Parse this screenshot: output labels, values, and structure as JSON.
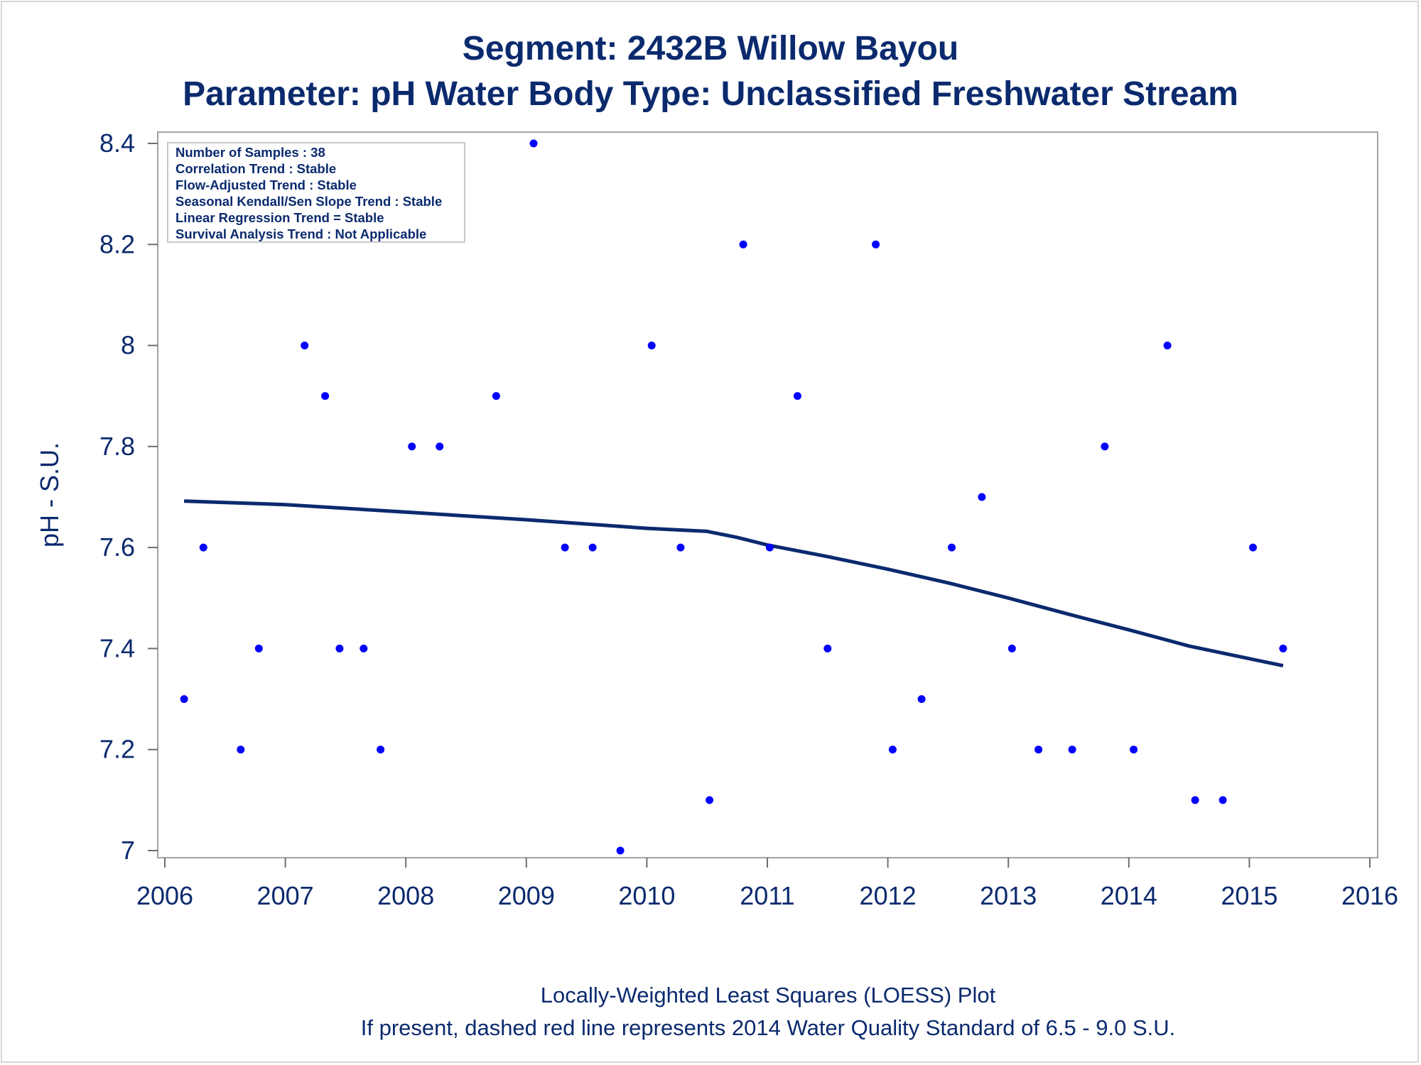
{
  "chart_data": {
    "type": "scatter",
    "title": "Segment: 2432B  Willow Bayou",
    "subtitle": "Parameter: pH   Water Body Type: Unclassified Freshwater Stream",
    "xlabel": "",
    "ylabel": "pH - S.U.",
    "xlim": [
      2006,
      2016
    ],
    "ylim": [
      7.0,
      8.4
    ],
    "x_ticks": [
      2006,
      2007,
      2008,
      2009,
      2010,
      2011,
      2012,
      2013,
      2014,
      2015,
      2016
    ],
    "y_ticks": [
      7,
      7.2,
      7.4,
      7.6,
      7.8,
      8,
      8.2,
      8.4
    ],
    "y_tick_labels": [
      "7",
      "7.2",
      "7.4",
      "7.6",
      "7.8",
      "8",
      "8.2",
      "8.4"
    ],
    "grid": false,
    "legend_position": "top-left",
    "legend_lines": [
      "Number of Samples : 38",
      "Correlation Trend : Stable",
      "Flow-Adjusted Trend : Stable",
      "Seasonal Kendall/Sen Slope Trend : Stable",
      "Linear Regression Trend = Stable",
      "Survival Analysis Trend : Not Applicable"
    ],
    "footnotes": [
      "Locally-Weighted Least Squares (LOESS) Plot",
      "If present, dashed red line represents 2014 Water Quality Standard of 6.5 - 9.0 S.U."
    ],
    "series": [
      {
        "type": "scatter",
        "color": "#0000ff",
        "points": [
          {
            "x": 2006.16,
            "y": 7.3
          },
          {
            "x": 2006.32,
            "y": 7.6
          },
          {
            "x": 2006.63,
            "y": 7.2
          },
          {
            "x": 2006.78,
            "y": 7.4
          },
          {
            "x": 2007.16,
            "y": 8.0
          },
          {
            "x": 2007.33,
            "y": 7.9
          },
          {
            "x": 2007.45,
            "y": 7.4
          },
          {
            "x": 2007.65,
            "y": 7.4
          },
          {
            "x": 2007.79,
            "y": 7.2
          },
          {
            "x": 2008.05,
            "y": 7.8
          },
          {
            "x": 2008.28,
            "y": 7.8
          },
          {
            "x": 2008.75,
            "y": 7.9
          },
          {
            "x": 2009.06,
            "y": 8.4
          },
          {
            "x": 2009.32,
            "y": 7.6
          },
          {
            "x": 2009.55,
            "y": 7.6
          },
          {
            "x": 2009.78,
            "y": 7.0
          },
          {
            "x": 2010.04,
            "y": 8.0
          },
          {
            "x": 2010.28,
            "y": 7.6
          },
          {
            "x": 2010.52,
            "y": 7.1
          },
          {
            "x": 2010.8,
            "y": 8.2
          },
          {
            "x": 2011.02,
            "y": 7.6
          },
          {
            "x": 2011.25,
            "y": 7.9
          },
          {
            "x": 2011.5,
            "y": 7.4
          },
          {
            "x": 2011.9,
            "y": 8.2
          },
          {
            "x": 2012.04,
            "y": 7.2
          },
          {
            "x": 2012.28,
            "y": 7.3
          },
          {
            "x": 2012.53,
            "y": 7.6
          },
          {
            "x": 2012.78,
            "y": 7.7
          },
          {
            "x": 2013.03,
            "y": 7.4
          },
          {
            "x": 2013.25,
            "y": 7.2
          },
          {
            "x": 2013.53,
            "y": 7.2
          },
          {
            "x": 2013.8,
            "y": 7.8
          },
          {
            "x": 2014.04,
            "y": 7.2
          },
          {
            "x": 2014.32,
            "y": 8.0
          },
          {
            "x": 2014.55,
            "y": 7.1
          },
          {
            "x": 2014.78,
            "y": 7.1
          },
          {
            "x": 2015.03,
            "y": 7.6
          },
          {
            "x": 2015.28,
            "y": 7.4
          }
        ]
      },
      {
        "type": "line",
        "name": "LOESS",
        "color": "#0b2a6e",
        "points": [
          {
            "x": 2006.16,
            "y": 7.692
          },
          {
            "x": 2007.0,
            "y": 7.685
          },
          {
            "x": 2008.0,
            "y": 7.67
          },
          {
            "x": 2009.0,
            "y": 7.655
          },
          {
            "x": 2010.0,
            "y": 7.638
          },
          {
            "x": 2010.5,
            "y": 7.632
          },
          {
            "x": 2010.75,
            "y": 7.62
          },
          {
            "x": 2011.0,
            "y": 7.605
          },
          {
            "x": 2011.5,
            "y": 7.582
          },
          {
            "x": 2012.0,
            "y": 7.557
          },
          {
            "x": 2012.5,
            "y": 7.53
          },
          {
            "x": 2013.0,
            "y": 7.5
          },
          {
            "x": 2013.5,
            "y": 7.468
          },
          {
            "x": 2014.0,
            "y": 7.437
          },
          {
            "x": 2014.5,
            "y": 7.405
          },
          {
            "x": 2015.0,
            "y": 7.38
          },
          {
            "x": 2015.28,
            "y": 7.366
          }
        ]
      }
    ]
  }
}
